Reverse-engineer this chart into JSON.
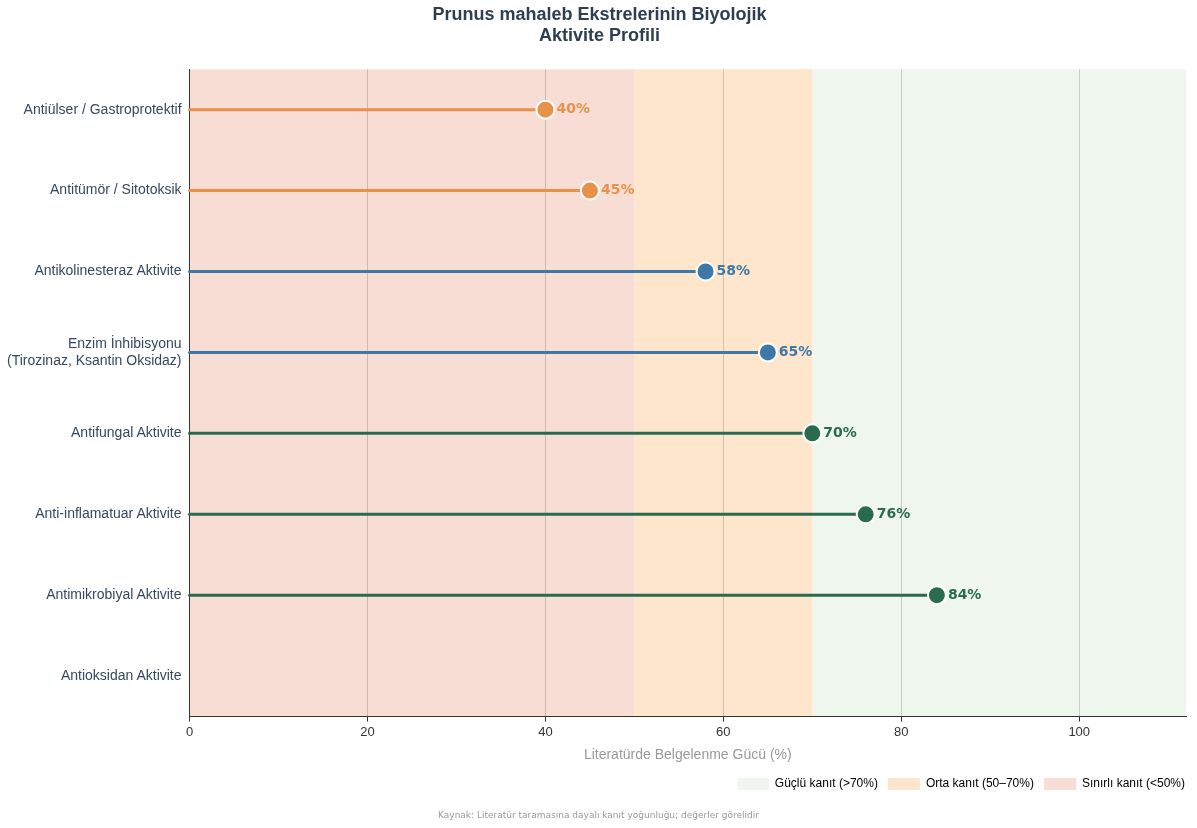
{
  "chart_data": {
    "type": "lollipop",
    "orientation": "horizontal",
    "title": "Prunus mahaleb Ekstrelerinin Biyolojik\nAktivite Profili",
    "xlabel": "Literatürde Belgelenme Gücü (%)",
    "categories": [
      "Antiülser / Gastroprotektif",
      "Antitümör / Sitotoksik",
      "Antikolinesteraz Aktivite",
      "Enzim İnhibisyonu\n(Tirozinaz, Ksantin Oksidaz)",
      "Antifungal Aktivite",
      "Anti-inflamatuar Aktivite",
      "Antimikrobiyal Aktivite",
      "Antioksidan Aktivite"
    ],
    "values": [
      40,
      45,
      58,
      65,
      70,
      76,
      84,
      null
    ],
    "colors": [
      "#e8914a",
      "#e8914a",
      "#3d78a6",
      "#3d78a6",
      "#2a6b4f",
      "#2a6b4f",
      "#2a6b4f",
      "#2a6b4f"
    ],
    "value_labels": [
      "40%",
      "45%",
      "58%",
      "65%",
      "70%",
      "76%",
      "84%",
      null
    ],
    "xlim": [
      0,
      112
    ],
    "xticks": [
      0,
      20,
      40,
      60,
      80,
      100
    ],
    "grid": "x",
    "legend": "bottom right",
    "marker": "circle",
    "bands": [
      {
        "axis": "x",
        "from": 70,
        "to": 112,
        "label": "Güçlü kanıt (>70%)",
        "color": "#eef6ee"
      },
      {
        "axis": "x",
        "from": 50,
        "to": 70,
        "label": "Orta kanıt (50–70%)",
        "color": "#fde6cc"
      },
      {
        "axis": "x",
        "from": 0,
        "to": 50,
        "label": "Sınırlı kanıt (<50%)",
        "color": "#f8ddd4"
      }
    ],
    "annotations": [
      "Kaynak: Literatür taramasına dayalı kanıt yoğunluğu; değerler görelidir"
    ]
  }
}
